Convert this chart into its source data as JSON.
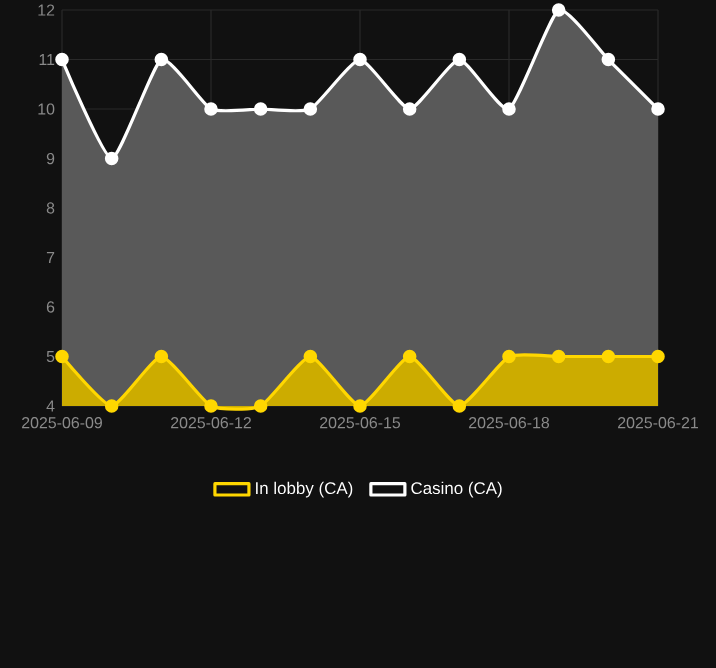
{
  "chart_data": {
    "type": "area",
    "x": [
      "2025-06-09",
      "2025-06-10",
      "2025-06-11",
      "2025-06-12",
      "2025-06-13",
      "2025-06-14",
      "2025-06-15",
      "2025-06-16",
      "2025-06-17",
      "2025-06-18",
      "2025-06-19",
      "2025-06-20",
      "2025-06-21"
    ],
    "series": [
      {
        "name": "In lobby (CA)",
        "color": "#ffd700",
        "values": [
          5,
          4,
          5,
          4,
          4,
          5,
          4,
          5,
          4,
          5,
          5,
          5,
          5
        ]
      },
      {
        "name": "Casino (CA)",
        "color": "#ffffff",
        "values": [
          11,
          9,
          11,
          10,
          10,
          10,
          11,
          10,
          11,
          10,
          12,
          11,
          10
        ]
      }
    ],
    "xlim": [
      "2025-06-09",
      "2025-06-21"
    ],
    "xticks": [
      "2025-06-09",
      "2025-06-12",
      "2025-06-15",
      "2025-06-18",
      "2025-06-21"
    ],
    "ylim": [
      4,
      12
    ],
    "yticks": [
      4,
      5,
      6,
      7,
      8,
      9,
      10,
      11,
      12
    ],
    "grid": true,
    "legend": "bottom",
    "marker": "circle",
    "line_style": "solid"
  }
}
